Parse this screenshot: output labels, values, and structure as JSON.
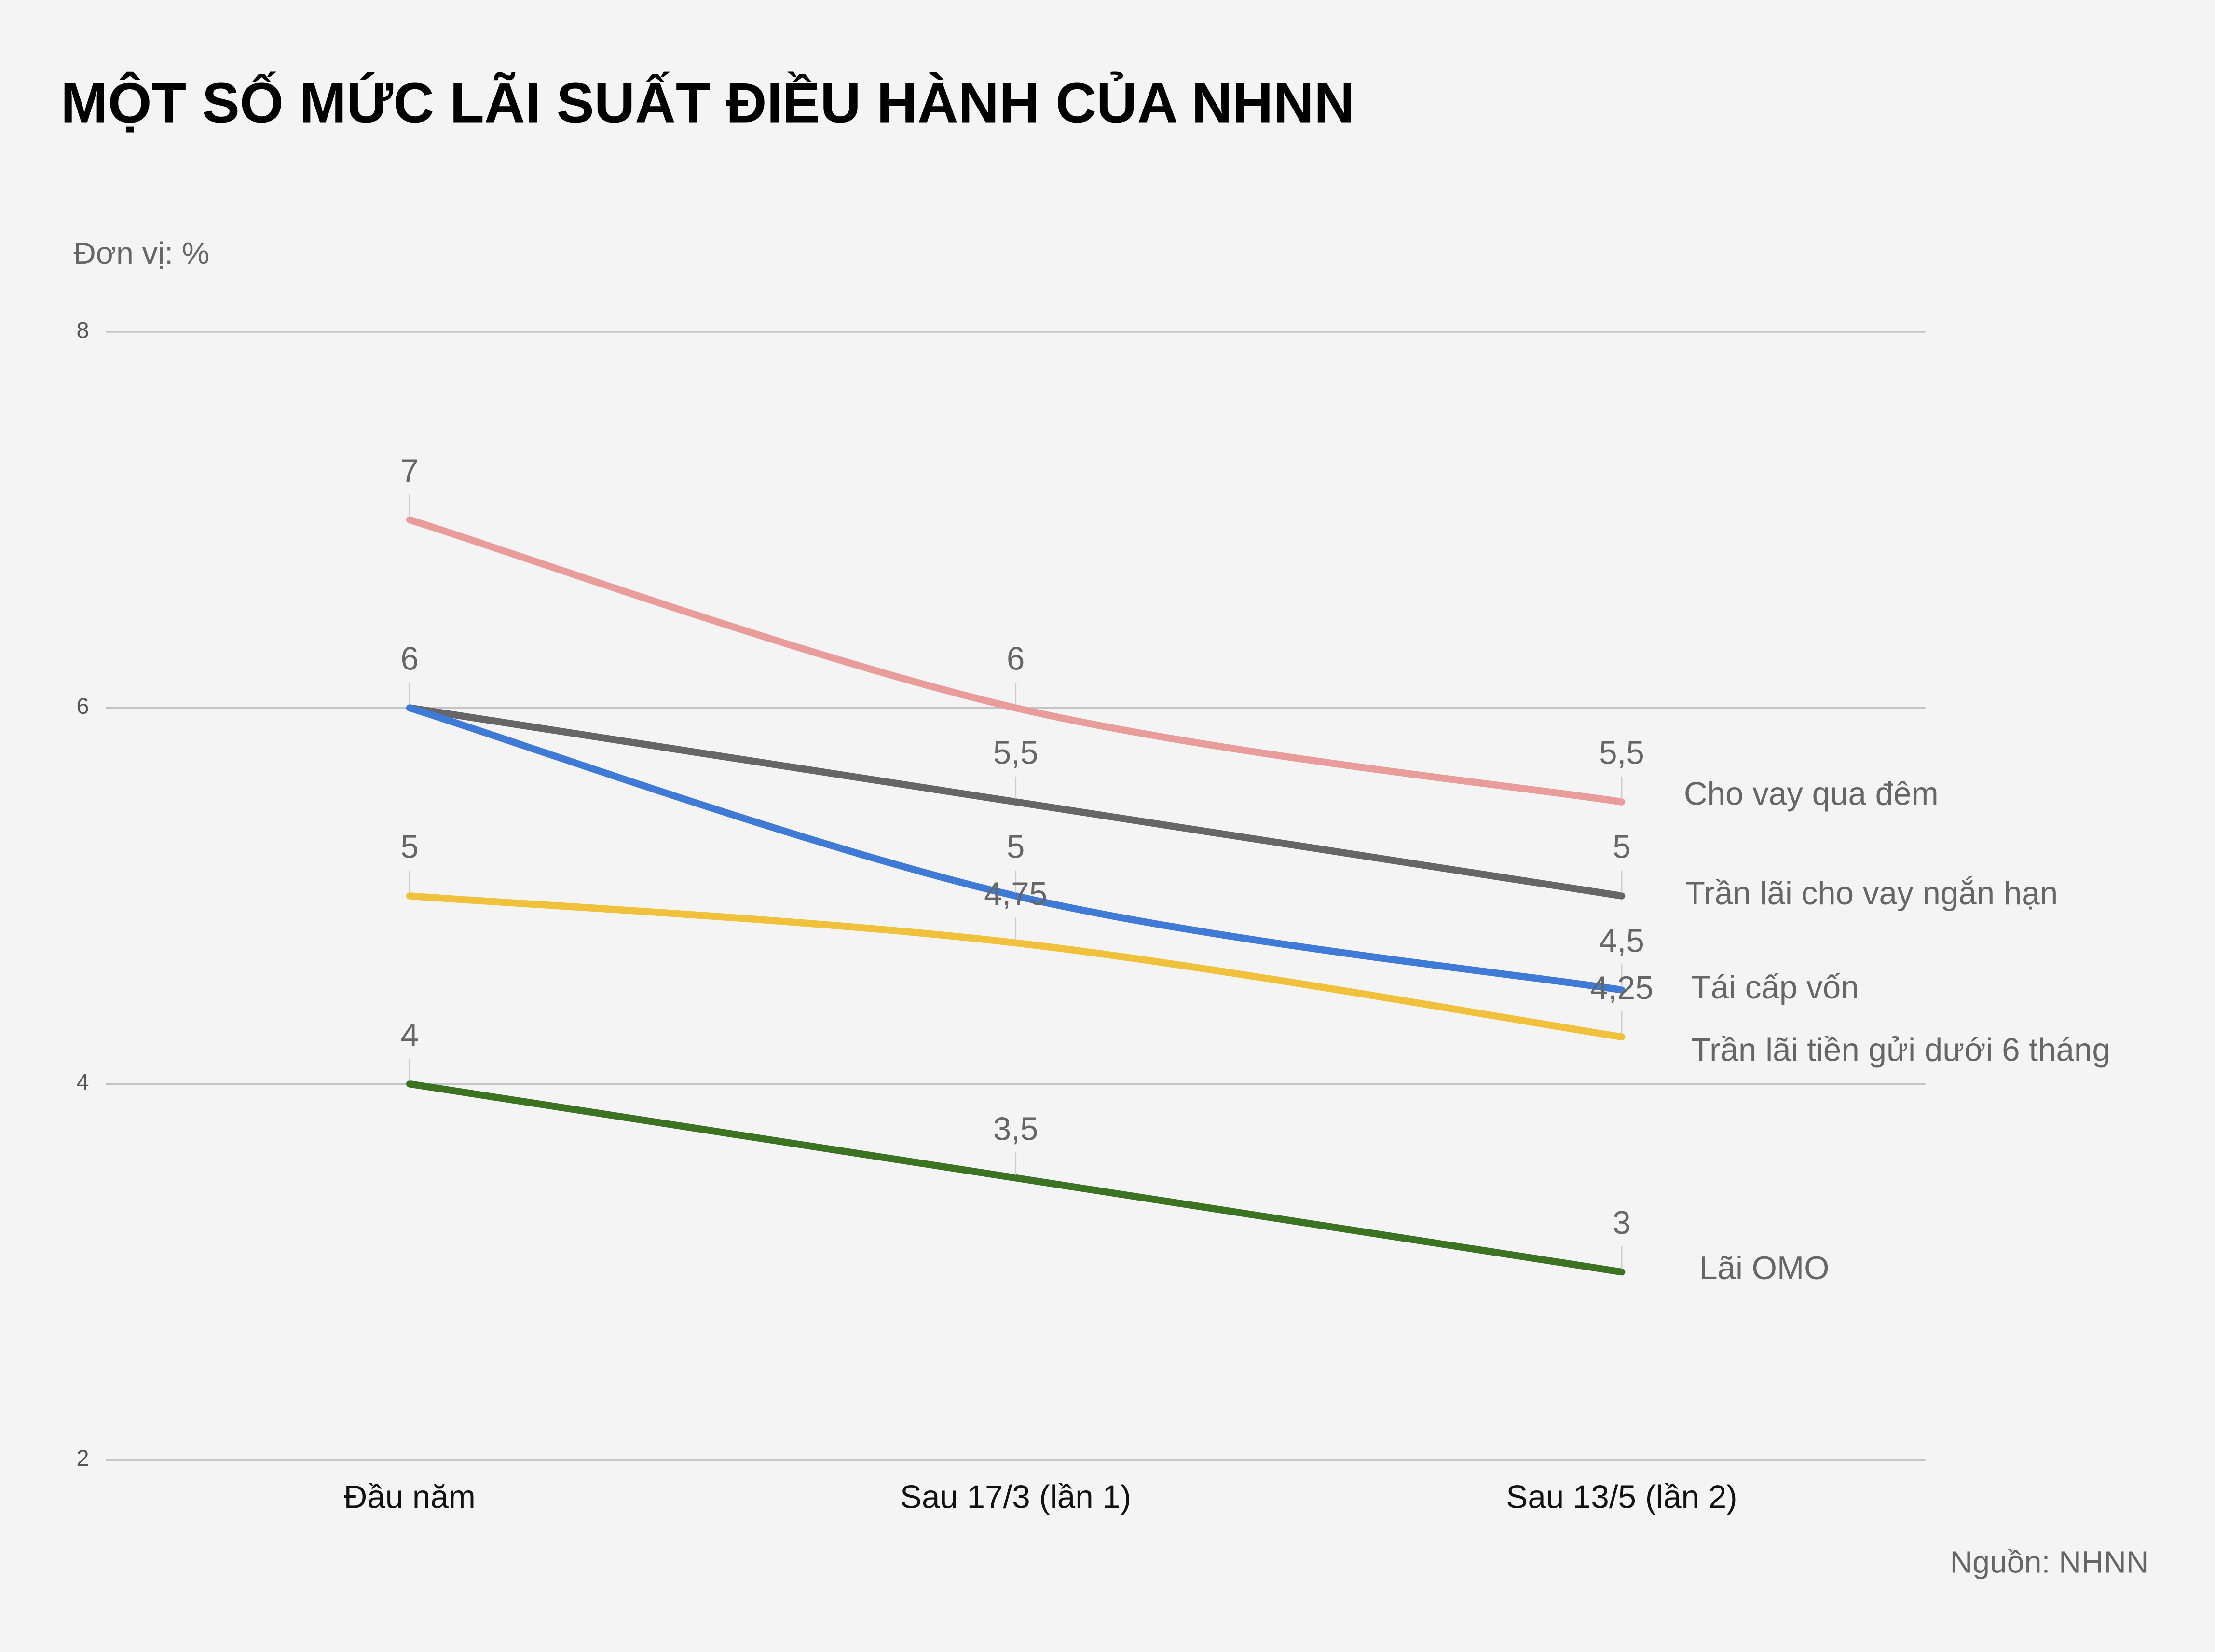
{
  "chart_data": {
    "type": "line",
    "title": "MỘT SỐ MỨC LÃI SUẤT ĐIỀU HÀNH CỦA NHNN",
    "y_label": "Đơn vị: %",
    "source": "Nguồn: NHNN",
    "categories": [
      "Đầu năm",
      "Sau 17/3 (lần 1)",
      "Sau 13/5 (lần 2)"
    ],
    "ylim": [
      2,
      8
    ],
    "yticks": [
      2,
      4,
      6,
      8
    ],
    "grid": true,
    "series": [
      {
        "name": "Cho vay qua đêm",
        "color": "#e89d9b",
        "values": [
          7,
          6,
          5.5
        ],
        "value_labels": [
          "7",
          "6",
          "5,5"
        ]
      },
      {
        "name": "Trần lãi cho vay ngắn hạn",
        "color": "#666666",
        "values": [
          6,
          5.5,
          5
        ],
        "value_labels": [
          "6",
          "5,5",
          "5"
        ]
      },
      {
        "name": "Tái cấp vốn",
        "color": "#3f7bd6",
        "values": [
          6,
          5,
          4.5
        ],
        "value_labels": [
          null,
          "5",
          "4,5"
        ]
      },
      {
        "name": "Trần lãi tiền gửi dưới 6 tháng",
        "color": "#f0c23c",
        "values": [
          5,
          4.75,
          4.25
        ],
        "value_labels": [
          "5",
          "4,75",
          "4,25"
        ]
      },
      {
        "name": "Lãi OMO",
        "color": "#3b7322",
        "values": [
          4,
          3.5,
          3
        ],
        "value_labels": [
          "4",
          "3,5",
          "3"
        ]
      }
    ]
  }
}
